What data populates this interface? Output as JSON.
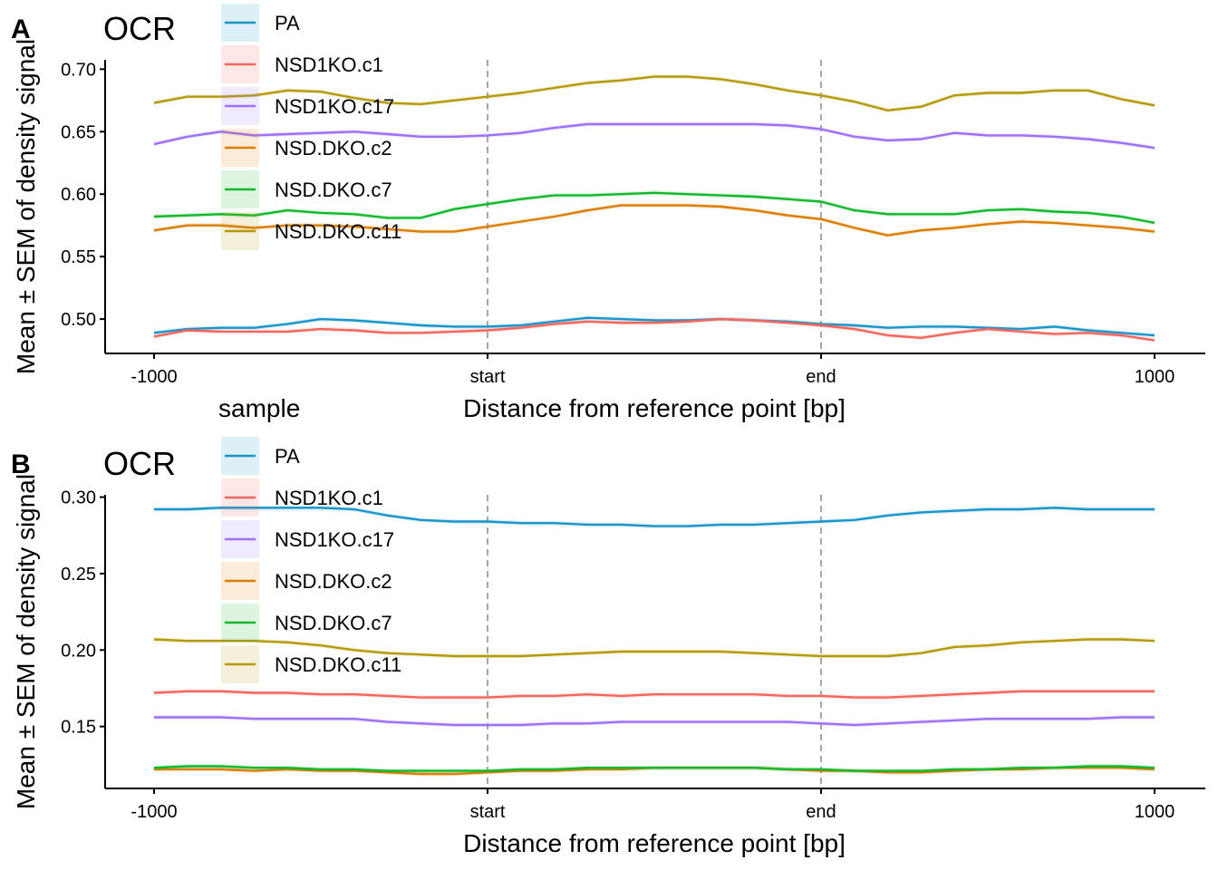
{
  "colors": {
    "PA": "#1A95CA",
    "NSD1KO.c1": "#F2665D",
    "NSD1KO.c17": "#9D70F7",
    "NSD.DKO.c2": "#DB7D00",
    "NSD.DKO.c7": "#11B82C",
    "NSD.DKO.c11": "#B4990A",
    "axis": "#000000",
    "refline": "#A6A6A6"
  },
  "legend_title": "sample",
  "chart_data": [
    {
      "panel_label": "A",
      "type": "line",
      "title": "OCR",
      "xlabel": "Distance from reference point [bp]",
      "ylabel": "Mean ± SEM of density signal",
      "xlim": [
        -1000,
        1000
      ],
      "ylim": [
        0.4725,
        0.7075
      ],
      "x_ticks": [
        -1000,
        -333.3,
        333.3,
        1000
      ],
      "x_tick_labels": [
        "-1000",
        "start",
        "end",
        "1000"
      ],
      "y_ticks": [
        0.5,
        0.55,
        0.6,
        0.65,
        0.7
      ],
      "y_tick_labels": [
        "0.50",
        "0.55",
        "0.60",
        "0.65",
        "0.70"
      ],
      "reference_lines": [
        -333.3,
        333.3
      ],
      "legend": "top-left",
      "x": [
        -1000,
        -933.3,
        -866.7,
        -800,
        -733.3,
        -666.7,
        -600,
        -533.3,
        -466.7,
        -400,
        -333.3,
        -266.7,
        -200,
        -133.3,
        -66.7,
        0,
        66.7,
        133.3,
        200,
        266.7,
        333.3,
        400,
        466.7,
        533.3,
        600,
        666.7,
        733.3,
        800,
        866.7,
        933.3,
        1000
      ],
      "series": [
        {
          "name": "PA",
          "values": [
            0.489,
            0.492,
            0.493,
            0.493,
            0.496,
            0.5,
            0.499,
            0.497,
            0.495,
            0.494,
            0.494,
            0.495,
            0.498,
            0.501,
            0.5,
            0.499,
            0.499,
            0.5,
            0.499,
            0.498,
            0.496,
            0.495,
            0.493,
            0.494,
            0.494,
            0.493,
            0.492,
            0.494,
            0.491,
            0.489,
            0.487
          ]
        },
        {
          "name": "NSD1KO.c1",
          "values": [
            0.486,
            0.491,
            0.49,
            0.49,
            0.49,
            0.492,
            0.491,
            0.489,
            0.489,
            0.49,
            0.491,
            0.493,
            0.496,
            0.498,
            0.497,
            0.497,
            0.498,
            0.5,
            0.499,
            0.497,
            0.495,
            0.492,
            0.487,
            0.485,
            0.489,
            0.492,
            0.49,
            0.488,
            0.489,
            0.487,
            0.483
          ]
        },
        {
          "name": "NSD1KO.c17",
          "values": [
            0.64,
            0.646,
            0.65,
            0.647,
            0.648,
            0.649,
            0.65,
            0.648,
            0.646,
            0.646,
            0.647,
            0.649,
            0.653,
            0.656,
            0.656,
            0.656,
            0.656,
            0.656,
            0.656,
            0.655,
            0.652,
            0.646,
            0.643,
            0.644,
            0.649,
            0.647,
            0.647,
            0.646,
            0.644,
            0.641,
            0.637
          ]
        },
        {
          "name": "NSD.DKO.c2",
          "values": [
            0.571,
            0.575,
            0.575,
            0.573,
            0.575,
            0.575,
            0.574,
            0.572,
            0.57,
            0.57,
            0.574,
            0.578,
            0.582,
            0.587,
            0.591,
            0.591,
            0.591,
            0.59,
            0.587,
            0.583,
            0.58,
            0.573,
            0.567,
            0.571,
            0.573,
            0.576,
            0.578,
            0.577,
            0.575,
            0.573,
            0.57
          ]
        },
        {
          "name": "NSD.DKO.c7",
          "values": [
            0.582,
            0.583,
            0.584,
            0.583,
            0.587,
            0.585,
            0.584,
            0.581,
            0.581,
            0.588,
            0.592,
            0.596,
            0.599,
            0.599,
            0.6,
            0.601,
            0.6,
            0.599,
            0.598,
            0.596,
            0.594,
            0.587,
            0.584,
            0.584,
            0.584,
            0.587,
            0.588,
            0.586,
            0.585,
            0.582,
            0.577
          ]
        },
        {
          "name": "NSD.DKO.c11",
          "values": [
            0.673,
            0.678,
            0.678,
            0.679,
            0.683,
            0.682,
            0.677,
            0.673,
            0.672,
            0.675,
            0.678,
            0.681,
            0.685,
            0.689,
            0.691,
            0.694,
            0.694,
            0.692,
            0.688,
            0.683,
            0.679,
            0.674,
            0.667,
            0.67,
            0.679,
            0.681,
            0.681,
            0.683,
            0.683,
            0.676,
            0.671
          ]
        }
      ]
    },
    {
      "panel_label": "B",
      "type": "line",
      "title": "OCR",
      "xlabel": "Distance from reference point [bp]",
      "ylabel": "Mean ± SEM of density signal",
      "xlim": [
        -1000,
        1000
      ],
      "ylim": [
        0.1095,
        0.3015
      ],
      "x_ticks": [
        -1000,
        -333.3,
        333.3,
        1000
      ],
      "x_tick_labels": [
        "-1000",
        "start",
        "end",
        "1000"
      ],
      "y_ticks": [
        0.15,
        0.2,
        0.25,
        0.3
      ],
      "y_tick_labels": [
        "0.15",
        "0.20",
        "0.25",
        "0.30"
      ],
      "reference_lines": [
        -333.3,
        333.3
      ],
      "legend": "top-left",
      "x": [
        -1000,
        -933.3,
        -866.7,
        -800,
        -733.3,
        -666.7,
        -600,
        -533.3,
        -466.7,
        -400,
        -333.3,
        -266.7,
        -200,
        -133.3,
        -66.7,
        0,
        66.7,
        133.3,
        200,
        266.7,
        333.3,
        400,
        466.7,
        533.3,
        600,
        666.7,
        733.3,
        800,
        866.7,
        933.3,
        1000
      ],
      "series": [
        {
          "name": "PA",
          "values": [
            0.292,
            0.292,
            0.293,
            0.293,
            0.293,
            0.293,
            0.292,
            0.288,
            0.285,
            0.284,
            0.284,
            0.283,
            0.283,
            0.282,
            0.282,
            0.281,
            0.281,
            0.282,
            0.282,
            0.283,
            0.284,
            0.285,
            0.288,
            0.29,
            0.291,
            0.292,
            0.292,
            0.293,
            0.292,
            0.292,
            0.292
          ]
        },
        {
          "name": "NSD1KO.c1",
          "values": [
            0.172,
            0.173,
            0.173,
            0.172,
            0.172,
            0.171,
            0.171,
            0.17,
            0.169,
            0.169,
            0.169,
            0.17,
            0.17,
            0.171,
            0.17,
            0.171,
            0.171,
            0.171,
            0.171,
            0.17,
            0.17,
            0.169,
            0.169,
            0.17,
            0.171,
            0.172,
            0.173,
            0.173,
            0.173,
            0.173,
            0.173
          ]
        },
        {
          "name": "NSD1KO.c17",
          "values": [
            0.156,
            0.156,
            0.156,
            0.155,
            0.155,
            0.155,
            0.155,
            0.153,
            0.152,
            0.151,
            0.151,
            0.151,
            0.152,
            0.152,
            0.153,
            0.153,
            0.153,
            0.153,
            0.153,
            0.153,
            0.152,
            0.151,
            0.152,
            0.153,
            0.154,
            0.155,
            0.155,
            0.155,
            0.155,
            0.156,
            0.156
          ]
        },
        {
          "name": "NSD.DKO.c2",
          "values": [
            0.122,
            0.122,
            0.122,
            0.121,
            0.122,
            0.121,
            0.121,
            0.12,
            0.119,
            0.119,
            0.12,
            0.121,
            0.121,
            0.122,
            0.122,
            0.123,
            0.123,
            0.123,
            0.123,
            0.122,
            0.121,
            0.121,
            0.12,
            0.12,
            0.121,
            0.122,
            0.122,
            0.123,
            0.123,
            0.123,
            0.122
          ]
        },
        {
          "name": "NSD.DKO.c7",
          "values": [
            0.123,
            0.124,
            0.124,
            0.123,
            0.123,
            0.122,
            0.122,
            0.121,
            0.121,
            0.121,
            0.121,
            0.122,
            0.122,
            0.123,
            0.123,
            0.123,
            0.123,
            0.123,
            0.123,
            0.122,
            0.122,
            0.121,
            0.121,
            0.121,
            0.122,
            0.122,
            0.123,
            0.123,
            0.124,
            0.124,
            0.123
          ]
        },
        {
          "name": "NSD.DKO.c11",
          "values": [
            0.207,
            0.206,
            0.206,
            0.206,
            0.205,
            0.203,
            0.2,
            0.198,
            0.197,
            0.196,
            0.196,
            0.196,
            0.197,
            0.198,
            0.199,
            0.199,
            0.199,
            0.199,
            0.198,
            0.197,
            0.196,
            0.196,
            0.196,
            0.198,
            0.202,
            0.203,
            0.205,
            0.206,
            0.207,
            0.207,
            0.206
          ]
        }
      ]
    }
  ]
}
